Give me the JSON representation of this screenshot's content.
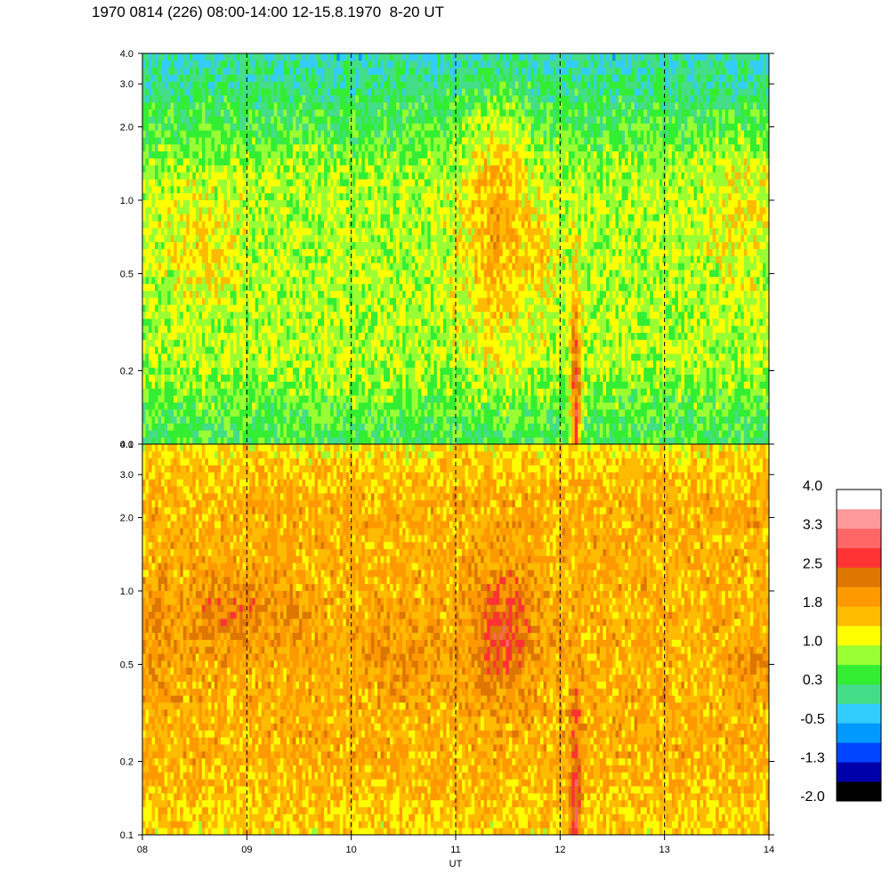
{
  "title": "1970 0814 (226) 08:00-14:00 12-15.8.1970  8-20 UT",
  "chart_data": {
    "type": "heatmap",
    "x_axis": {
      "label": "UT",
      "ticks": [
        "08",
        "09",
        "10",
        "11",
        "12",
        "13",
        "14"
      ],
      "range": [
        8,
        14
      ],
      "dashed_gridlines_at": [
        9,
        10,
        11,
        12,
        13
      ]
    },
    "y_axis": {
      "scale": "log",
      "range": [
        0.1,
        4.0
      ],
      "ticks": [
        {
          "value": 0.1,
          "label": "0.1"
        },
        {
          "value": 0.2,
          "label": "0.2"
        },
        {
          "value": 0.5,
          "label": "0.5"
        },
        {
          "value": 1.0,
          "label": "1.0"
        },
        {
          "value": 2.0,
          "label": "2.0"
        },
        {
          "value": 3.0,
          "label": "3.0"
        },
        {
          "value": 4.0,
          "label": "4.0"
        }
      ]
    },
    "panels": [
      {
        "name": "upper",
        "baseline_level": 0.9,
        "features": [
          {
            "t": 11.4,
            "f": 0.75,
            "dt": 0.3,
            "df": 0.45,
            "level": 1.8
          },
          {
            "t": 11.8,
            "f": 0.6,
            "dt": 0.15,
            "df": 0.2,
            "level": 1.5
          },
          {
            "t": 8.6,
            "f": 0.65,
            "dt": 0.3,
            "df": 0.2,
            "level": 1.4
          },
          {
            "t": 13.7,
            "f": 0.9,
            "dt": 0.3,
            "df": 0.25,
            "level": 1.3
          },
          {
            "t": 12.15,
            "f": 0.15,
            "dt": 0.05,
            "df": 0.45,
            "level": 2.6
          }
        ]
      },
      {
        "name": "lower",
        "baseline_level": 1.7,
        "features": [
          {
            "t": 8.9,
            "f": 0.8,
            "dt": 0.6,
            "df": 0.15,
            "level": 2.2
          },
          {
            "t": 11.45,
            "f": 0.7,
            "dt": 0.3,
            "df": 0.25,
            "level": 2.6
          },
          {
            "t": 13.8,
            "f": 0.48,
            "dt": 0.2,
            "df": 0.12,
            "level": 2.1
          },
          {
            "t": 10.5,
            "f": 0.55,
            "dt": 0.4,
            "df": 0.15,
            "level": 2.0
          },
          {
            "t": 12.15,
            "f": 0.15,
            "dt": 0.05,
            "df": 0.45,
            "level": 2.7
          },
          {
            "t": 8.1,
            "f": 0.65,
            "dt": 0.12,
            "df": 0.2,
            "level": 2.1
          }
        ]
      }
    ],
    "colorbar": {
      "tick_labels": [
        "4.0",
        "3.3",
        "2.5",
        "1.8",
        "1.0",
        "0.3",
        "-0.5",
        "-1.3",
        "-2.0"
      ],
      "range": [
        -2.0,
        4.0
      ],
      "colors": [
        "#000000",
        "#0000aa",
        "#0044ff",
        "#0099ff",
        "#33ccff",
        "#44dd88",
        "#33ee33",
        "#99ff33",
        "#ffff00",
        "#ffbb00",
        "#ff9900",
        "#dd7700",
        "#ff3333",
        "#ff6666",
        "#ff9999",
        "#ffffff"
      ]
    }
  }
}
